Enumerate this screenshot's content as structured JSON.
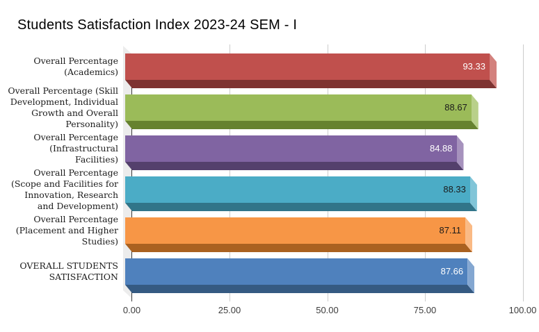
{
  "title": "Students Satisfaction Index 2023-24 SEM - I",
  "chart_data": {
    "type": "bar",
    "orientation": "horizontal",
    "title": "Students Satisfaction Index 2023-24 SEM - I",
    "categories": [
      "Overall Percentage\n(Academics)",
      "Overall Percentage (Skill\nDevelopment, Individual\nGrowth and Overall\nPersonality)",
      "Overall Percentage\n(Infrastructural\nFacilities)",
      "Overall Percentage\n(Scope and Facilities for\nInnovation, Research\nand Development)",
      "Overall Percentage\n(Placement and Higher\nStudies)",
      "OVERALL STUDENTS\nSATISFACTION"
    ],
    "values": [
      93.33,
      88.67,
      84.88,
      88.33,
      87.11,
      87.66
    ],
    "value_labels": [
      "93.33",
      "88.67",
      "84.88",
      "88.33",
      "87.11",
      "87.66"
    ],
    "bar_colors": [
      "#c0504d",
      "#9bbb59",
      "#8064a2",
      "#4bacc6",
      "#f79646",
      "#4f81bd"
    ],
    "bar_dark_colors": [
      "#7e3331",
      "#66822f",
      "#54406c",
      "#317589",
      "#aa6120",
      "#355a82"
    ],
    "bar_light_colors": [
      "#d3817d",
      "#b9d08a",
      "#a692bd",
      "#81c5d8",
      "#faba85",
      "#84a7d1"
    ],
    "value_label_colors": [
      "#ffffff",
      "#1a1a1a",
      "#ffffff",
      "#1a1a1a",
      "#1a1a1a",
      "#ffffff"
    ],
    "xlabel": "",
    "ylabel": "",
    "xlim": [
      0,
      100
    ],
    "xticks": [
      "0.00",
      "25.00",
      "50.00",
      "75.00",
      "100.00"
    ],
    "xtick_values": [
      0,
      25,
      50,
      75,
      100
    ],
    "grid": true,
    "legend": false,
    "effect_3d": true
  }
}
